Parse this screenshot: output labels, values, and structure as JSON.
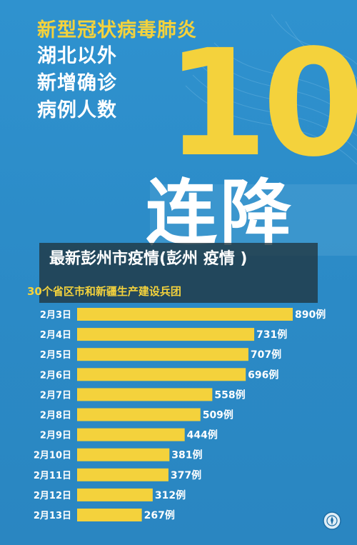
{
  "poster": {
    "heading": "新型冠状病毒肺炎",
    "subheading_lines": [
      "湖北以外",
      "新增确诊",
      "病例人数"
    ],
    "big_number": "10",
    "big_slogan": "连降"
  },
  "overlay": {
    "title": "最新彭州市疫情(彭州 疫情 )"
  },
  "chart_data": {
    "type": "bar",
    "orientation": "horizontal",
    "title": "",
    "subtitle": "30个省区市和新疆生产建设兵团",
    "categories": [
      "2月3日",
      "2月4日",
      "2月5日",
      "2月6日",
      "2月7日",
      "2月8日",
      "2月9日",
      "2月10日",
      "2月11日",
      "2月12日",
      "2月13日"
    ],
    "values": [
      890,
      731,
      707,
      696,
      558,
      509,
      444,
      381,
      377,
      312,
      267
    ],
    "value_labels": [
      "890例",
      "731例",
      "707例",
      "696例",
      "558例",
      "509例",
      "444例",
      "381例",
      "377例",
      "312例",
      "267例"
    ],
    "xlabel": "",
    "ylabel": "",
    "xlim": [
      0,
      890
    ],
    "grid": false,
    "colors": {
      "bar": "#f4d23c",
      "label": "#ffffff",
      "background": "#2f8fcb"
    }
  }
}
